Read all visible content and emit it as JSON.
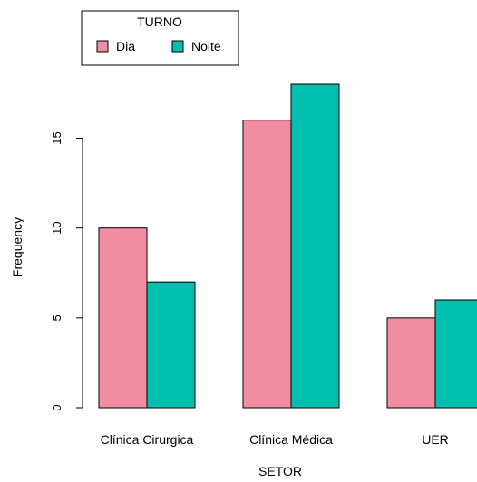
{
  "chart_data": {
    "type": "bar",
    "categories": [
      "Clínica Cirurgica",
      "Clínica Médica",
      "UER"
    ],
    "series": [
      {
        "name": "Dia",
        "values": [
          10,
          16,
          5
        ],
        "color": "#F08DA1"
      },
      {
        "name": "Noite",
        "values": [
          7,
          18,
          6
        ],
        "color": "#00BFAE"
      }
    ],
    "xlabel": "SETOR",
    "ylabel": "Frequency",
    "yticks": [
      0,
      5,
      10,
      15
    ],
    "ylim": [
      0,
      18
    ],
    "legend": {
      "title": "TURNO",
      "placement": "top-left"
    },
    "grid": false
  }
}
